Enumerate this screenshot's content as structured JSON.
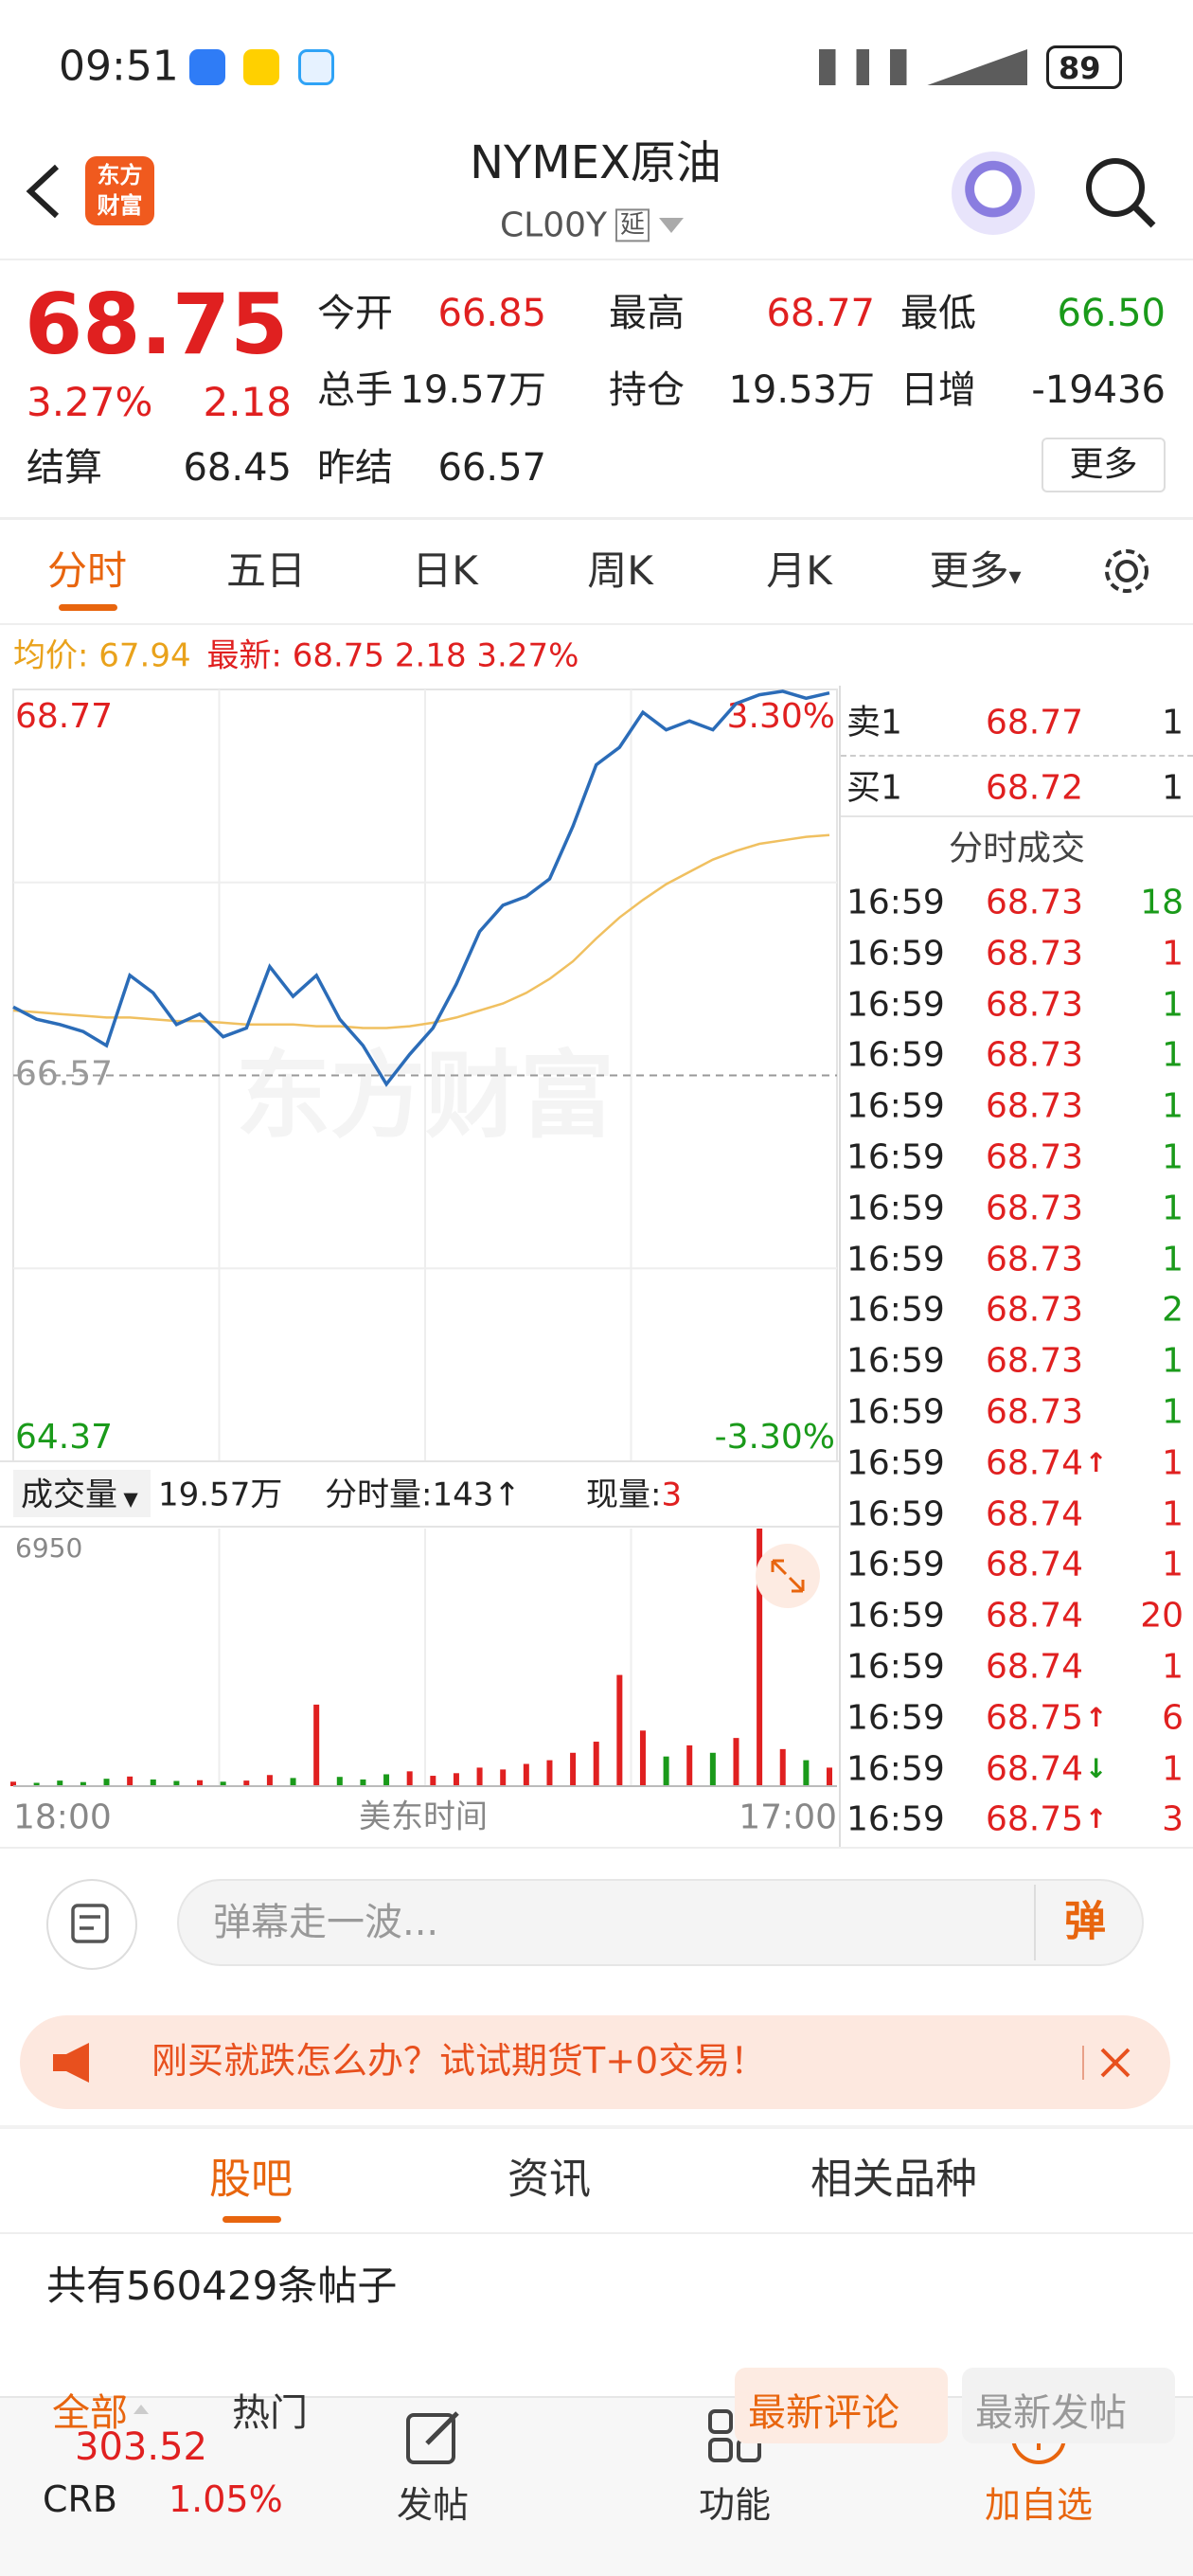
{
  "status_bar": {
    "time": "09:51",
    "battery": "89"
  },
  "header": {
    "logo": [
      "东方",
      "财富"
    ],
    "title": "NYMEX原油",
    "code": "CL00Y",
    "delay_tag": "延"
  },
  "quote": {
    "price": "68.75",
    "change_pct": "3.27%",
    "change": "2.18",
    "settle_label": "结算",
    "settle": "68.45",
    "more": "更多",
    "fields": [
      {
        "label": "今开",
        "value": "66.85",
        "color": "#e02020"
      },
      {
        "label": "最高",
        "value": "68.77",
        "color": "#e02020"
      },
      {
        "label": "最低",
        "value": "66.50",
        "color": "#1a9a1a"
      },
      {
        "label": "总手",
        "value": "19.57万",
        "color": "#222222"
      },
      {
        "label": "持仓",
        "value": "19.53万",
        "color": "#222222"
      },
      {
        "label": "日增",
        "value": "-19436",
        "color": "#222222"
      },
      {
        "label": "昨结",
        "value": "66.57",
        "color": "#222222"
      }
    ]
  },
  "tabs": [
    "分时",
    "五日",
    "日K",
    "周K",
    "月K",
    "更多"
  ],
  "info": {
    "avg_label": "均价:",
    "avg": "67.94",
    "latest_label": "最新:",
    "latest": "68.75",
    "change": "2.18",
    "change_pct": "3.27%"
  },
  "chart_data": [
    {
      "type": "line",
      "watermark": "东方财富",
      "ylim": [
        64.37,
        68.77
      ],
      "yticks": [
        64.37,
        66.57,
        68.77
      ],
      "ytick_colors": [
        "#1a9a1a",
        "#999999",
        "#e02020"
      ],
      "y2lim": [
        -3.3,
        3.3
      ],
      "y2ticks": [
        {
          "value": -3.3,
          "label": "-3.30%"
        },
        {
          "value": 3.3,
          "label": "3.30%"
        }
      ],
      "y2tick_colors": [
        "#1a9a1a",
        "#e02020"
      ],
      "series": [
        {
          "color": "#2b6cb8",
          "values": [
            66.96,
            66.89,
            66.86,
            66.82,
            66.74,
            67.14,
            67.04,
            66.86,
            66.92,
            66.79,
            66.84,
            67.19,
            67.02,
            67.14,
            66.89,
            66.74,
            66.52,
            66.69,
            66.84,
            67.09,
            67.39,
            67.54,
            67.59,
            67.69,
            67.99,
            68.34,
            68.44,
            68.64,
            68.54,
            68.59,
            68.54,
            68.69,
            68.74,
            68.76,
            68.72,
            68.75
          ]
        },
        {
          "color": "#f0c060",
          "values": [
            66.94,
            66.93,
            66.92,
            66.91,
            66.9,
            66.9,
            66.89,
            66.88,
            66.88,
            66.87,
            66.86,
            66.86,
            66.86,
            66.85,
            66.85,
            66.84,
            66.84,
            66.85,
            66.87,
            66.9,
            66.94,
            66.98,
            67.04,
            67.12,
            67.22,
            67.35,
            67.47,
            67.57,
            67.66,
            67.73,
            67.8,
            67.85,
            67.89,
            67.91,
            67.93,
            67.94
          ]
        }
      ]
    },
    {
      "type": "bar",
      "x_start": "18:00",
      "x_end": "17:00",
      "xlabel": "美东时间",
      "ylim": [
        0,
        6950
      ],
      "yticks": [
        6950
      ],
      "up_color": "#e02020",
      "down_color": "#1a9a1a",
      "values": [
        120,
        90,
        150,
        110,
        200,
        260,
        180,
        140,
        160,
        120,
        150,
        300,
        220,
        2200,
        250,
        180,
        320,
        400,
        280,
        350,
        500,
        450,
        600,
        700,
        900,
        1200,
        3000,
        1500,
        800,
        1100,
        900,
        1300,
        6950,
        1000,
        700,
        500
      ]
    }
  ],
  "volume_header": {
    "label": "成交量",
    "total": "19.57万",
    "tick": "分时量:143↑",
    "current_label": "现量:",
    "current": "3"
  },
  "order_book": {
    "ask": {
      "label": "卖1",
      "price": "68.77",
      "volume": "1"
    },
    "bid": {
      "label": "买1",
      "price": "68.72",
      "volume": "1"
    },
    "trades_title": "分时成交",
    "trades": [
      {
        "time": "16:59",
        "price": "68.73",
        "volume": "18",
        "color": "#1a9a1a"
      },
      {
        "time": "16:59",
        "price": "68.73",
        "volume": "1",
        "color": "#e02020"
      },
      {
        "time": "16:59",
        "price": "68.73",
        "volume": "1",
        "color": "#1a9a1a"
      },
      {
        "time": "16:59",
        "price": "68.73",
        "volume": "1",
        "color": "#1a9a1a"
      },
      {
        "time": "16:59",
        "price": "68.73",
        "volume": "1",
        "color": "#1a9a1a"
      },
      {
        "time": "16:59",
        "price": "68.73",
        "volume": "1",
        "color": "#1a9a1a"
      },
      {
        "time": "16:59",
        "price": "68.73",
        "volume": "1",
        "color": "#1a9a1a"
      },
      {
        "time": "16:59",
        "price": "68.73",
        "volume": "1",
        "color": "#1a9a1a"
      },
      {
        "time": "16:59",
        "price": "68.73",
        "volume": "2",
        "color": "#1a9a1a"
      },
      {
        "time": "16:59",
        "price": "68.73",
        "volume": "1",
        "color": "#1a9a1a"
      },
      {
        "time": "16:59",
        "price": "68.73",
        "volume": "1",
        "color": "#1a9a1a"
      },
      {
        "time": "16:59",
        "price": "68.74",
        "arrow": "↑",
        "arrow_color": "#e02020",
        "volume": "1",
        "color": "#e02020"
      },
      {
        "time": "16:59",
        "price": "68.74",
        "volume": "1",
        "color": "#e02020"
      },
      {
        "time": "16:59",
        "price": "68.74",
        "volume": "1",
        "color": "#e02020"
      },
      {
        "time": "16:59",
        "price": "68.74",
        "volume": "20",
        "color": "#e02020"
      },
      {
        "time": "16:59",
        "price": "68.74",
        "volume": "1",
        "color": "#e02020"
      },
      {
        "time": "16:59",
        "price": "68.75",
        "arrow": "↑",
        "arrow_color": "#e02020",
        "volume": "6",
        "color": "#e02020"
      },
      {
        "time": "16:59",
        "price": "68.74",
        "arrow": "↓",
        "arrow_color": "#1a9a1a",
        "volume": "1",
        "color": "#e02020"
      },
      {
        "time": "16:59",
        "price": "68.75",
        "arrow": "↑",
        "arrow_color": "#e02020",
        "volume": "3",
        "color": "#e02020"
      }
    ]
  },
  "comment": {
    "placeholder": "弹幕走一波...",
    "button": "弹"
  },
  "banner": "刚买就跌怎么办？试试期货T+0交易！",
  "section_tabs": [
    "股吧",
    "资讯",
    "相关品种"
  ],
  "post_count": "共有560429条帖子",
  "filters": [
    "全部",
    "热门",
    "最新评论",
    "最新发帖"
  ],
  "bottom_nav": {
    "index_value": "303.52",
    "index_name": "CRB",
    "index_change": "1.05%",
    "items": [
      "发帖",
      "功能",
      "加自选"
    ]
  }
}
